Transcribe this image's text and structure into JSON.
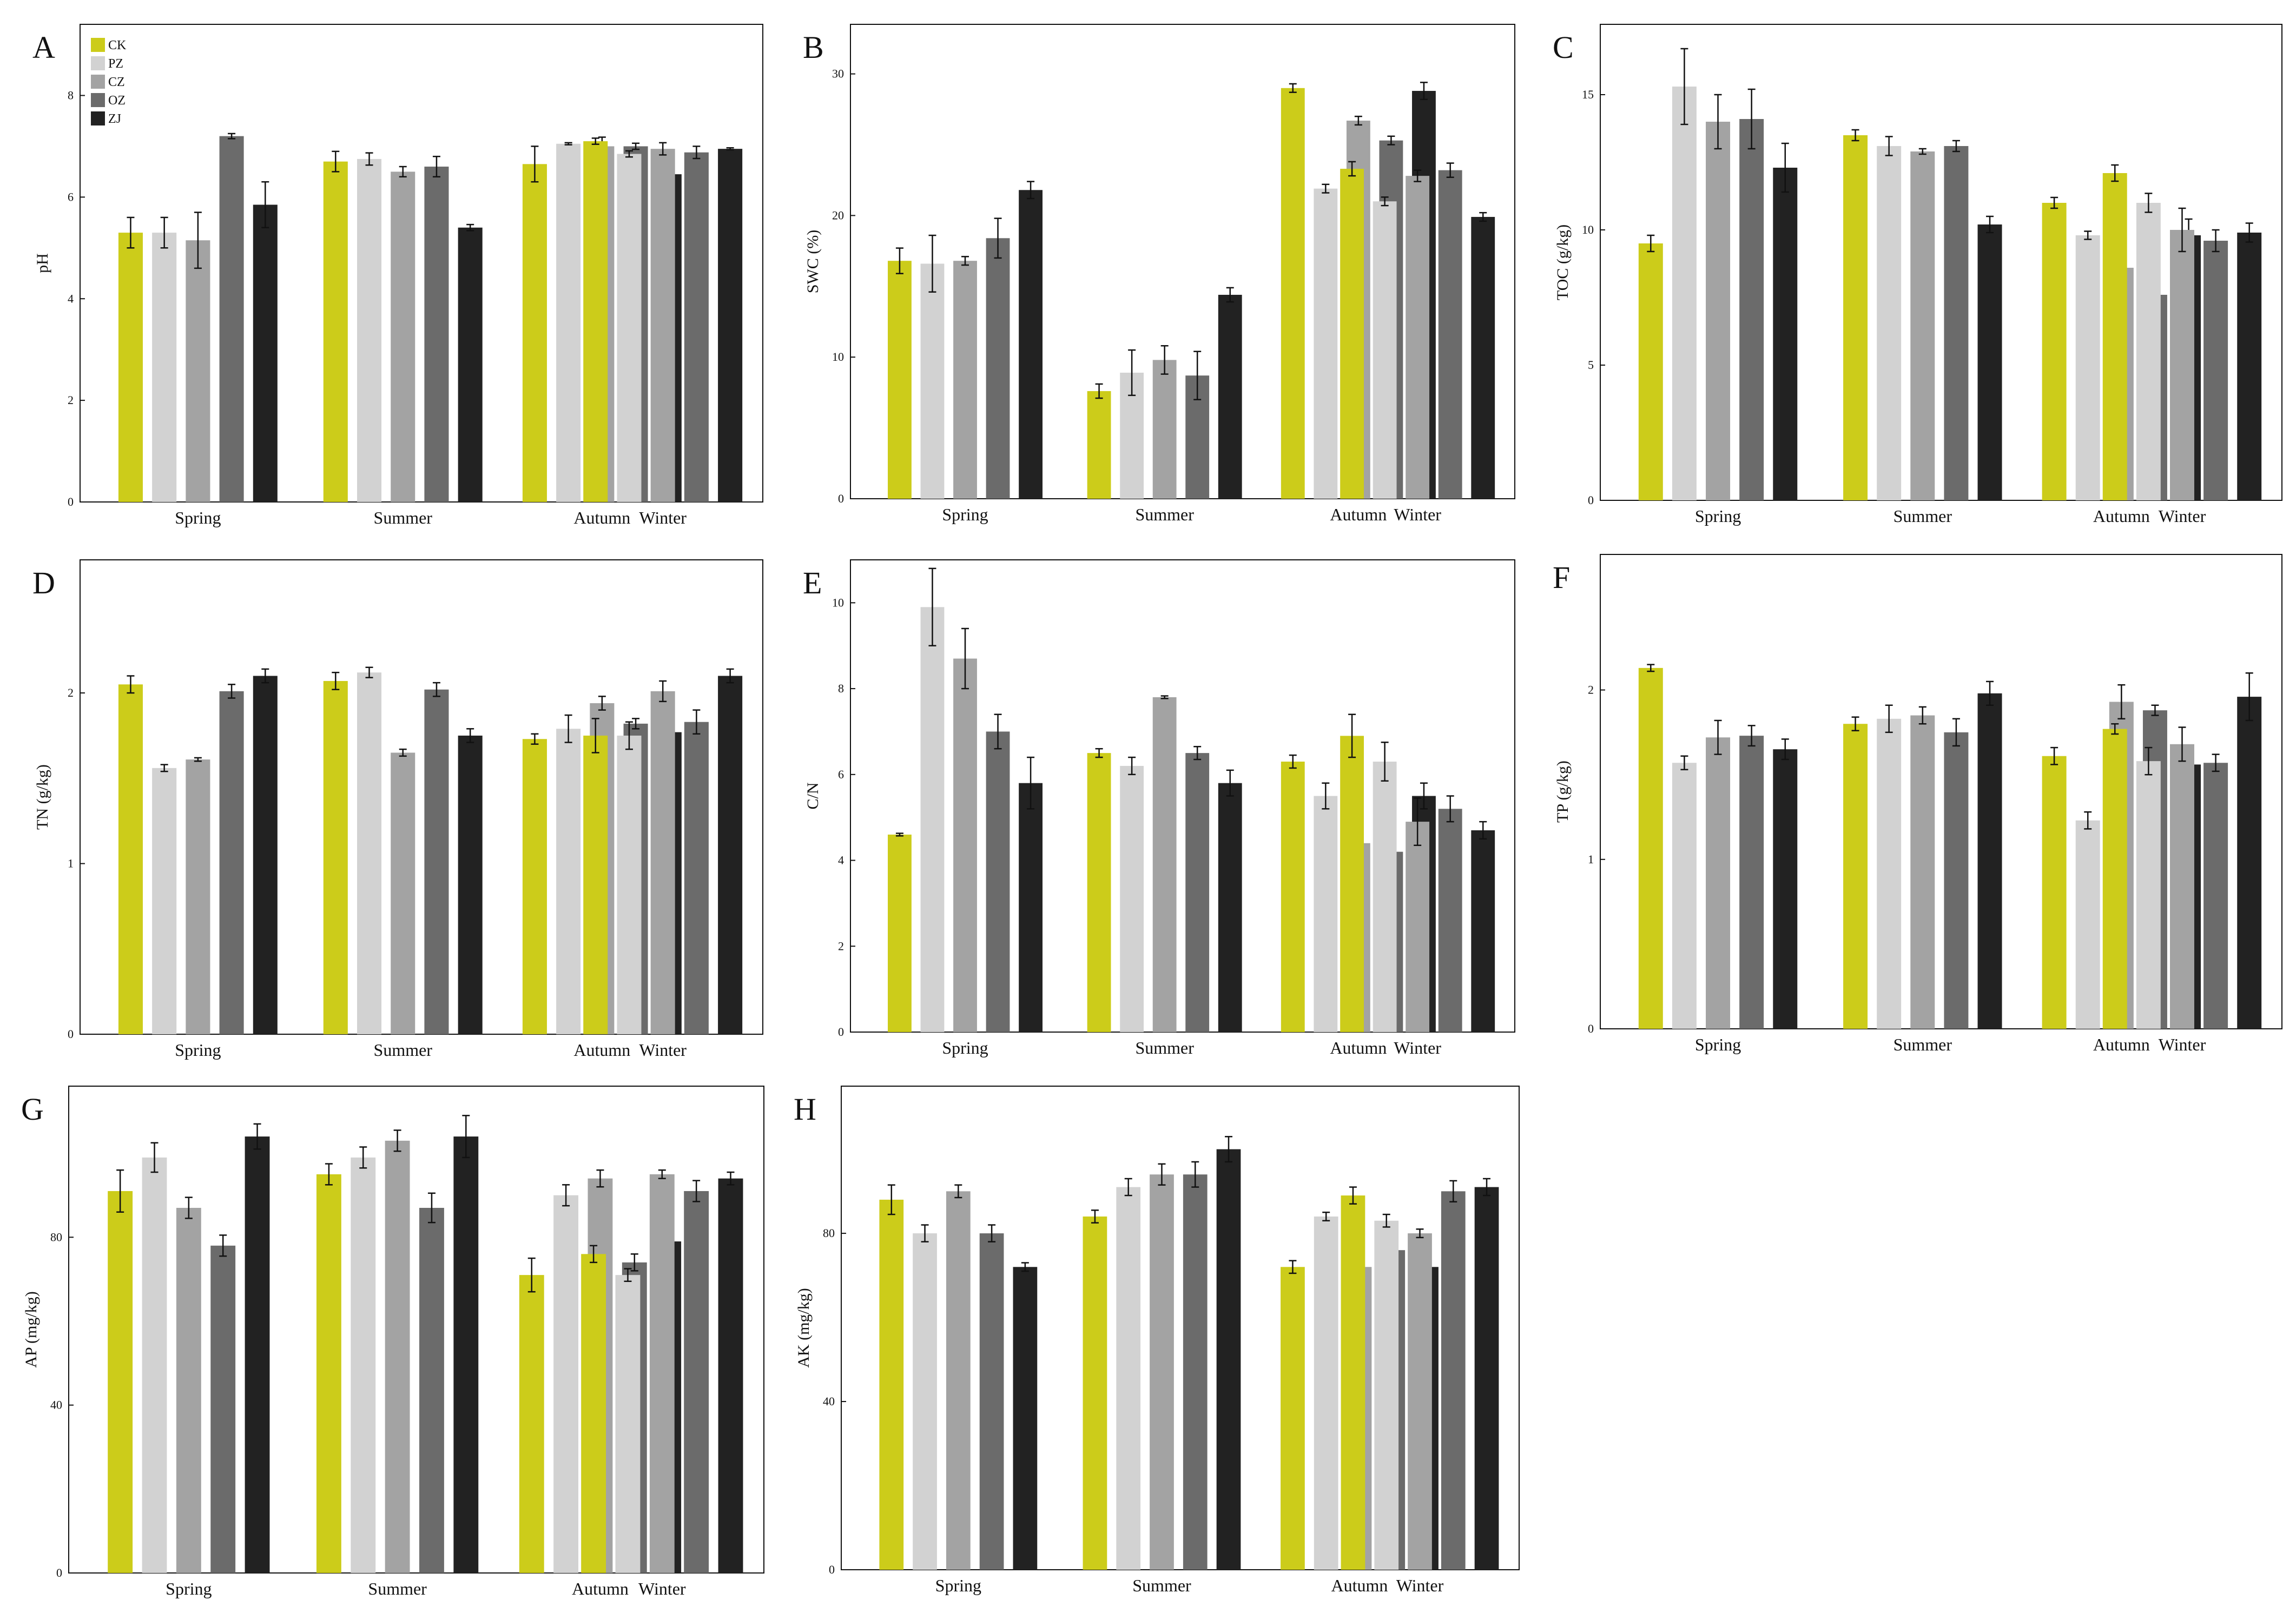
{
  "figure": {
    "legend": [
      {
        "name": "CK",
        "color": "#cccc1a"
      },
      {
        "name": "PZ",
        "color": "#d2d2d2"
      },
      {
        "name": "CZ",
        "color": "#a3a3a3"
      },
      {
        "name": "OZ",
        "color": "#6b6b6b"
      },
      {
        "name": "ZJ",
        "color": "#222222"
      }
    ]
  },
  "chart_data": [
    {
      "panel": "A",
      "type": "bar",
      "ylabel": "pH",
      "categories": [
        "Spring",
        "Summer",
        "Autumn",
        "Winter"
      ],
      "ylim": [
        0,
        9.4
      ],
      "yticks": [
        0,
        2,
        4,
        6,
        8
      ],
      "series": [
        {
          "name": "CK",
          "values": [
            5.3,
            6.7,
            6.65,
            7.1
          ],
          "errors": [
            0.3,
            0.2,
            0.35,
            0.06
          ]
        },
        {
          "name": "PZ",
          "values": [
            5.3,
            6.75,
            7.05,
            6.85
          ],
          "errors": [
            0.3,
            0.12,
            0.02,
            0.06
          ]
        },
        {
          "name": "CZ",
          "values": [
            5.15,
            6.5,
            7.0,
            6.95
          ],
          "errors": [
            0.55,
            0.1,
            0.18,
            0.12
          ]
        },
        {
          "name": "OZ",
          "values": [
            7.2,
            6.6,
            7.0,
            6.88
          ],
          "errors": [
            0.05,
            0.2,
            0.06,
            0.12
          ]
        },
        {
          "name": "ZJ",
          "values": [
            5.85,
            5.4,
            6.45,
            6.95
          ],
          "errors": [
            0.45,
            0.06,
            0.16,
            0.02
          ]
        }
      ]
    },
    {
      "panel": "B",
      "type": "bar",
      "ylabel": "SWC (%)",
      "categories": [
        "Spring",
        "Summer",
        "Autumn",
        "Winter"
      ],
      "ylim": [
        0,
        33.5
      ],
      "yticks": [
        0,
        10,
        20,
        30
      ],
      "series": [
        {
          "name": "CK",
          "values": [
            16.8,
            7.6,
            29.0,
            23.3
          ],
          "errors": [
            0.9,
            0.5,
            0.3,
            0.5
          ]
        },
        {
          "name": "PZ",
          "values": [
            16.6,
            8.9,
            21.9,
            21.0
          ],
          "errors": [
            2.0,
            1.6,
            0.3,
            0.3
          ]
        },
        {
          "name": "CZ",
          "values": [
            16.8,
            9.8,
            26.7,
            22.8
          ],
          "errors": [
            0.3,
            1.0,
            0.3,
            0.4
          ]
        },
        {
          "name": "OZ",
          "values": [
            18.4,
            8.7,
            25.3,
            23.2
          ],
          "errors": [
            1.4,
            1.7,
            0.3,
            0.5
          ]
        },
        {
          "name": "ZJ",
          "values": [
            21.8,
            14.4,
            28.8,
            19.9
          ],
          "errors": [
            0.6,
            0.5,
            0.6,
            0.3
          ]
        }
      ]
    },
    {
      "panel": "C",
      "type": "bar",
      "ylabel": "TOC (g/kg)",
      "categories": [
        "Spring",
        "Summer",
        "Autumn",
        "Winter"
      ],
      "ylim": [
        0,
        17.6
      ],
      "yticks": [
        0,
        5,
        10,
        15
      ],
      "series": [
        {
          "name": "CK",
          "values": [
            9.5,
            13.5,
            11.0,
            12.1
          ],
          "errors": [
            0.3,
            0.2,
            0.2,
            0.3
          ]
        },
        {
          "name": "PZ",
          "values": [
            15.3,
            13.1,
            9.8,
            11.0
          ],
          "errors": [
            1.4,
            0.35,
            0.15,
            0.35
          ]
        },
        {
          "name": "CZ",
          "values": [
            14.0,
            12.9,
            8.6,
            10.0
          ],
          "errors": [
            1.0,
            0.1,
            0.5,
            0.8
          ]
        },
        {
          "name": "OZ",
          "values": [
            14.1,
            13.1,
            7.6,
            9.6
          ],
          "errors": [
            1.1,
            0.2,
            0.2,
            0.4
          ]
        },
        {
          "name": "ZJ",
          "values": [
            12.3,
            10.2,
            9.8,
            9.9
          ],
          "errors": [
            0.9,
            0.3,
            0.6,
            0.35
          ]
        }
      ]
    },
    {
      "panel": "D",
      "type": "bar",
      "ylabel": "TN (g/kg)",
      "categories": [
        "Spring",
        "Summer",
        "Autumn",
        "Winter"
      ],
      "ylim": [
        0,
        2.78
      ],
      "yticks": [
        0,
        1,
        2
      ],
      "series": [
        {
          "name": "CK",
          "values": [
            2.05,
            2.07,
            1.73,
            1.75
          ],
          "errors": [
            0.05,
            0.05,
            0.03,
            0.1
          ]
        },
        {
          "name": "PZ",
          "values": [
            1.56,
            2.12,
            1.79,
            1.75
          ],
          "errors": [
            0.02,
            0.03,
            0.08,
            0.08
          ]
        },
        {
          "name": "CZ",
          "values": [
            1.61,
            1.65,
            1.94,
            2.01
          ],
          "errors": [
            0.01,
            0.02,
            0.04,
            0.06
          ]
        },
        {
          "name": "OZ",
          "values": [
            2.01,
            2.02,
            1.82,
            1.83
          ],
          "errors": [
            0.04,
            0.04,
            0.03,
            0.07
          ]
        },
        {
          "name": "ZJ",
          "values": [
            2.1,
            1.75,
            1.77,
            2.1
          ],
          "errors": [
            0.04,
            0.04,
            0.06,
            0.04
          ]
        }
      ]
    },
    {
      "panel": "E",
      "type": "bar",
      "ylabel": "C/N",
      "categories": [
        "Spring",
        "Summer",
        "Autumn",
        "Winter"
      ],
      "ylim": [
        0,
        11.0
      ],
      "yticks": [
        0,
        2,
        4,
        6,
        8,
        10
      ],
      "series": [
        {
          "name": "CK",
          "values": [
            4.6,
            6.5,
            6.3,
            6.9
          ],
          "errors": [
            0.03,
            0.1,
            0.15,
            0.5
          ]
        },
        {
          "name": "PZ",
          "values": [
            9.9,
            6.2,
            5.5,
            6.3
          ],
          "errors": [
            0.9,
            0.2,
            0.3,
            0.45
          ]
        },
        {
          "name": "CZ",
          "values": [
            8.7,
            7.8,
            4.4,
            4.9
          ],
          "errors": [
            0.7,
            0.03,
            0.4,
            0.55
          ]
        },
        {
          "name": "OZ",
          "values": [
            7.0,
            6.5,
            4.2,
            5.2
          ],
          "errors": [
            0.4,
            0.15,
            0.1,
            0.3
          ]
        },
        {
          "name": "ZJ",
          "values": [
            5.8,
            5.8,
            5.5,
            4.7
          ],
          "errors": [
            0.6,
            0.3,
            0.3,
            0.2
          ]
        }
      ]
    },
    {
      "panel": "F",
      "type": "bar",
      "ylabel": "TP (g/kg)",
      "categories": [
        "Spring",
        "Summer",
        "Autumn",
        "Winter"
      ],
      "ylim": [
        0,
        2.8
      ],
      "yticks": [
        0,
        1,
        2
      ],
      "series": [
        {
          "name": "CK",
          "values": [
            2.13,
            1.8,
            1.61,
            1.77
          ],
          "errors": [
            0.02,
            0.04,
            0.05,
            0.03
          ]
        },
        {
          "name": "PZ",
          "values": [
            1.57,
            1.83,
            1.23,
            1.58
          ],
          "errors": [
            0.04,
            0.08,
            0.05,
            0.08
          ]
        },
        {
          "name": "CZ",
          "values": [
            1.72,
            1.85,
            1.93,
            1.68
          ],
          "errors": [
            0.1,
            0.05,
            0.1,
            0.1
          ]
        },
        {
          "name": "OZ",
          "values": [
            1.73,
            1.75,
            1.88,
            1.57
          ],
          "errors": [
            0.06,
            0.08,
            0.03,
            0.05
          ]
        },
        {
          "name": "ZJ",
          "values": [
            1.65,
            1.98,
            1.56,
            1.96
          ],
          "errors": [
            0.06,
            0.07,
            0.08,
            0.14
          ]
        }
      ]
    },
    {
      "panel": "G",
      "type": "bar",
      "ylabel": "AP (mg/kg)",
      "categories": [
        "Spring",
        "Summer",
        "Autumn",
        "Winter"
      ],
      "ylim": [
        0,
        116
      ],
      "yticks": [
        0,
        40,
        80
      ],
      "series": [
        {
          "name": "CK",
          "values": [
            91,
            95,
            71,
            76
          ],
          "errors": [
            5,
            2.5,
            4,
            2
          ]
        },
        {
          "name": "PZ",
          "values": [
            99,
            99,
            90,
            71
          ],
          "errors": [
            3.5,
            2.5,
            2.5,
            1.5
          ]
        },
        {
          "name": "CZ",
          "values": [
            87,
            103,
            94,
            95
          ],
          "errors": [
            2.5,
            2.5,
            2,
            1
          ]
        },
        {
          "name": "OZ",
          "values": [
            78,
            87,
            74,
            91
          ],
          "errors": [
            2.5,
            3.5,
            2,
            2.5
          ]
        },
        {
          "name": "ZJ",
          "values": [
            104,
            104,
            79,
            94
          ],
          "errors": [
            3,
            5,
            3,
            1.5
          ]
        }
      ]
    },
    {
      "panel": "H",
      "type": "bar",
      "ylabel": "AK (mg/kg)",
      "categories": [
        "Spring",
        "Summer",
        "Autumn",
        "Winter"
      ],
      "ylim": [
        0,
        115
      ],
      "yticks": [
        0,
        40,
        80
      ],
      "series": [
        {
          "name": "CK",
          "values": [
            88,
            84,
            72,
            89
          ],
          "errors": [
            3.5,
            1.5,
            1.5,
            2
          ]
        },
        {
          "name": "PZ",
          "values": [
            80,
            91,
            84,
            83
          ],
          "errors": [
            2,
            2,
            1,
            1.5
          ]
        },
        {
          "name": "CZ",
          "values": [
            90,
            94,
            72,
            80
          ],
          "errors": [
            1.5,
            2.5,
            3.5,
            1
          ]
        },
        {
          "name": "OZ",
          "values": [
            80,
            94,
            76,
            90
          ],
          "errors": [
            2,
            3,
            1.5,
            2.5
          ]
        },
        {
          "name": "ZJ",
          "values": [
            72,
            100,
            72,
            91
          ],
          "errors": [
            1,
            3,
            1.5,
            2
          ]
        }
      ]
    }
  ]
}
